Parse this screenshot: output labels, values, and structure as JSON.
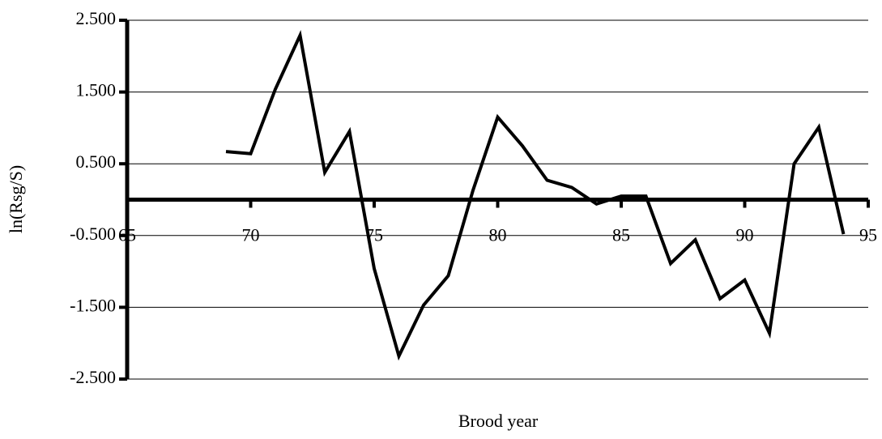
{
  "chart_data": {
    "type": "line",
    "x_label": "Brood year",
    "y_label": "ln(Rsg/S)",
    "x": [
      69,
      70,
      71,
      72,
      73,
      74,
      75,
      76,
      77,
      78,
      79,
      80,
      81,
      82,
      83,
      84,
      85,
      86,
      87,
      88,
      89,
      90,
      91,
      92,
      93,
      94
    ],
    "series": [
      {
        "name": "ln(Rsg/S)",
        "color": "#000000",
        "values": [
          0.67,
          0.64,
          1.54,
          2.29,
          0.38,
          0.95,
          -0.96,
          -2.18,
          -1.47,
          -1.06,
          0.13,
          1.15,
          0.75,
          0.27,
          0.17,
          -0.06,
          0.05,
          0.05,
          -0.89,
          -0.56,
          -1.38,
          -1.12,
          -1.86,
          0.5,
          1.01,
          -0.48
        ]
      }
    ],
    "xlim": [
      65,
      95
    ],
    "xticks": [
      65,
      70,
      75,
      80,
      85,
      90,
      95
    ],
    "ylim": [
      -2.5,
      2.5
    ],
    "yticks": [
      {
        "value": -2.5,
        "label": "-2.500"
      },
      {
        "value": -1.5,
        "label": "-1.500"
      },
      {
        "value": -0.5,
        "label": "-0.500"
      },
      {
        "value": 0.5,
        "label": "0.500"
      },
      {
        "value": 1.5,
        "label": "1.500"
      },
      {
        "value": 2.5,
        "label": "2.500"
      }
    ],
    "grid": true
  }
}
